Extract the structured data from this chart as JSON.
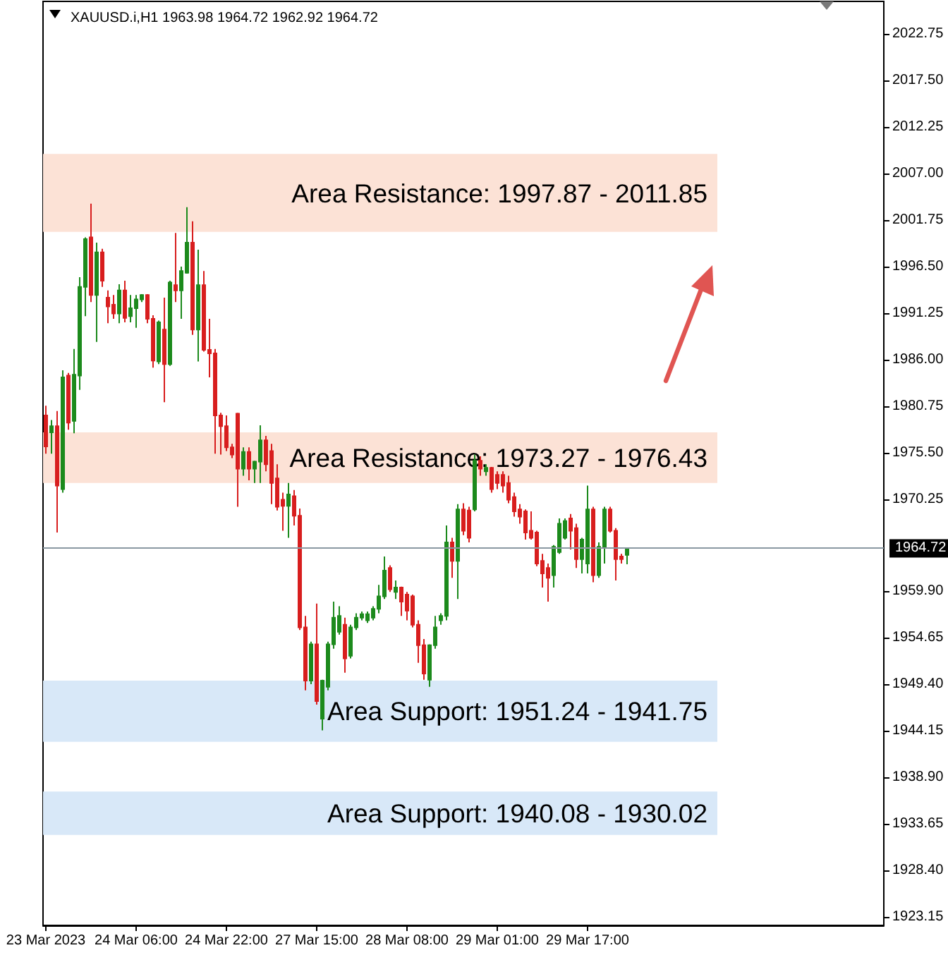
{
  "chart_data": {
    "type": "candlestick",
    "title": "XAUUSD.i,H1 1963.98 1964.72 1962.92 1964.72",
    "categories": [
      "23 Mar 2023",
      null,
      null,
      null,
      null,
      null,
      null,
      null,
      null,
      null,
      null,
      null,
      null,
      null,
      null,
      null,
      "24 Mar 06:00",
      null,
      null,
      null,
      null,
      null,
      null,
      null,
      null,
      null,
      null,
      null,
      null,
      null,
      null,
      null,
      "24 Mar 22:00",
      null,
      null,
      null,
      null,
      null,
      null,
      null,
      null,
      null,
      null,
      null,
      null,
      null,
      null,
      null,
      "27 Mar 15:00",
      null,
      null,
      null,
      null,
      null,
      null,
      null,
      null,
      null,
      null,
      null,
      null,
      null,
      null,
      null,
      "28 Mar 08:00",
      null,
      null,
      null,
      null,
      null,
      null,
      null,
      null,
      null,
      null,
      null,
      null,
      null,
      null,
      null,
      "29 Mar 01:00",
      null,
      null,
      null,
      null,
      null,
      null,
      null,
      null,
      null,
      null,
      null,
      null,
      null,
      null,
      null,
      "29 Mar 17:00",
      null,
      null,
      null,
      null,
      null,
      null,
      null,
      null,
      null,
      null,
      null,
      null,
      null,
      null,
      null,
      null,
      null,
      null,
      null,
      null,
      null,
      null,
      null,
      null,
      null,
      null,
      null,
      null,
      null,
      null,
      null,
      null,
      null,
      null,
      null,
      null,
      null,
      null,
      null,
      null,
      null,
      null,
      null,
      null,
      null,
      null,
      null,
      null,
      null,
      null,
      null,
      null
    ],
    "ohlc": [
      [
        1979.7,
        1980.8,
        1975.4,
        1976.2
      ],
      [
        1977.8,
        1979.2,
        1975.4,
        1978.5
      ],
      [
        1978.5,
        1980.2,
        1966.5,
        1971.8
      ],
      [
        1971.4,
        1984.8,
        1971.0,
        1984.0
      ],
      [
        1984.2,
        1984.5,
        1978.1,
        1978.9
      ],
      [
        1979.1,
        1987.2,
        1977.7,
        1984.3
      ],
      [
        1984.2,
        1995.3,
        1982.6,
        1994.2
      ],
      [
        1994.2,
        1999.8,
        1990.9,
        1999.6
      ],
      [
        1999.8,
        2003.6,
        1992.5,
        1993.3
      ],
      [
        1993.3,
        1999.2,
        1988.0,
        1998.1
      ],
      [
        1998.1,
        1998.5,
        1994.2,
        1994.9
      ],
      [
        1993.0,
        1993.8,
        1990.1,
        1992.0
      ],
      [
        1992.2,
        1993.3,
        1990.6,
        1991.2
      ],
      [
        1991.2,
        1994.5,
        1990.1,
        1993.8
      ],
      [
        1993.8,
        1994.9,
        1990.2,
        1990.7
      ],
      [
        1990.9,
        1993.3,
        1990.2,
        1991.8
      ],
      [
        1991.8,
        1993.3,
        1989.6,
        1992.8
      ],
      [
        1992.8,
        1993.4,
        1992.5,
        1993.3
      ],
      [
        1993.3,
        1993.4,
        1990.1,
        1990.6
      ],
      [
        1990.6,
        1991.0,
        1985.1,
        1985.9
      ],
      [
        1985.8,
        1990.4,
        1985.5,
        1990.2
      ],
      [
        1989.4,
        1993.0,
        1981.2,
        1985.5
      ],
      [
        1985.5,
        1994.9,
        1985.3,
        1994.7
      ],
      [
        1994.4,
        2000.3,
        1992.5,
        1993.8
      ],
      [
        1993.8,
        1996.5,
        1990.6,
        1996.0
      ],
      [
        1995.8,
        2003.2,
        1995.7,
        1999.2
      ],
      [
        1999.2,
        2001.6,
        1988.8,
        1989.4
      ],
      [
        1989.4,
        1998.4,
        1985.8,
        1994.4
      ],
      [
        1994.4,
        1996.0,
        1986.9,
        1987.1
      ],
      [
        1987.1,
        1990.6,
        1984.0,
        1986.7
      ],
      [
        1986.7,
        1987.2,
        1975.4,
        1979.7
      ],
      [
        1979.7,
        1980.0,
        1975.3,
        1978.5
      ],
      [
        1978.5,
        1979.7,
        1975.7,
        1976.1
      ],
      [
        1976.1,
        1976.5,
        1974.9,
        1975.3
      ],
      [
        1979.9,
        1980.0,
        1969.4,
        1973.7
      ],
      [
        1973.7,
        1976.1,
        1972.9,
        1975.6
      ],
      [
        1975.6,
        1976.1,
        1972.4,
        1973.7
      ],
      [
        1973.7,
        1974.6,
        1972.1,
        1974.5
      ],
      [
        1974.5,
        1978.6,
        1972.1,
        1976.9
      ],
      [
        1976.9,
        1977.4,
        1973.4,
        1974.2
      ],
      [
        1975.7,
        1976.5,
        1969.7,
        1972.1
      ],
      [
        1972.6,
        1974.2,
        1969.0,
        1969.4
      ],
      [
        1970.2,
        1971.0,
        1966.7,
        1969.5
      ],
      [
        1969.5,
        1972.1,
        1965.9,
        1970.8
      ],
      [
        1970.6,
        1971.3,
        1967.3,
        1968.4
      ],
      [
        1968.4,
        1969.2,
        1955.5,
        1955.8
      ],
      [
        1955.8,
        1957.1,
        1948.7,
        1949.8
      ],
      [
        1949.8,
        1954.2,
        1949.4,
        1953.9
      ],
      [
        1953.9,
        1958.5,
        1947.1,
        1947.5
      ],
      [
        1945.5,
        1949.9,
        1944.2,
        1949.8
      ],
      [
        1949.1,
        1954.2,
        1948.7,
        1953.9
      ],
      [
        1953.9,
        1958.7,
        1953.4,
        1956.9
      ],
      [
        1955.3,
        1958.2,
        1955.0,
        1957.1
      ],
      [
        1956.1,
        1956.9,
        1950.7,
        1952.3
      ],
      [
        1952.6,
        1956.1,
        1952.3,
        1955.8
      ],
      [
        1955.8,
        1957.4,
        1955.5,
        1956.9
      ],
      [
        1956.9,
        1957.6,
        1956.6,
        1957.3
      ],
      [
        1956.6,
        1957.6,
        1956.3,
        1957.3
      ],
      [
        1956.9,
        1958.2,
        1956.6,
        1957.9
      ],
      [
        1957.9,
        1960.6,
        1957.4,
        1959.3
      ],
      [
        1959.3,
        1963.8,
        1959.0,
        1962.2
      ],
      [
        1962.5,
        1962.8,
        1959.8,
        1960.1
      ],
      [
        1959.8,
        1961.1,
        1959.0,
        1960.3
      ],
      [
        1960.3,
        1960.4,
        1957.1,
        1958.7
      ],
      [
        1959.5,
        1959.8,
        1956.6,
        1957.7
      ],
      [
        1959.3,
        1959.5,
        1955.8,
        1956.1
      ],
      [
        1956.1,
        1956.6,
        1951.8,
        1953.8
      ],
      [
        1953.8,
        1954.5,
        1949.9,
        1950.6
      ],
      [
        1949.9,
        1953.9,
        1949.1,
        1953.8
      ],
      [
        1953.8,
        1957.1,
        1953.4,
        1955.8
      ],
      [
        1956.6,
        1957.4,
        1956.1,
        1957.1
      ],
      [
        1957.1,
        1967.3,
        1956.6,
        1965.4
      ],
      [
        1965.4,
        1965.9,
        1961.4,
        1963.3
      ],
      [
        1963.3,
        1969.7,
        1959.0,
        1969.1
      ],
      [
        1969.1,
        1969.8,
        1966.2,
        1966.7
      ],
      [
        1969.0,
        1969.4,
        1965.4,
        1965.9
      ],
      [
        1969.1,
        1975.3,
        1968.9,
        1974.6
      ],
      [
        1974.6,
        1975.1,
        1972.9,
        1973.7
      ],
      [
        1973.4,
        1974.2,
        1972.9,
        1973.8
      ],
      [
        1973.8,
        1973.9,
        1971.0,
        1971.4
      ],
      [
        1973.0,
        1973.4,
        1971.4,
        1972.1
      ],
      [
        1973.0,
        1973.4,
        1971.0,
        1971.8
      ],
      [
        1972.1,
        1972.9,
        1969.8,
        1970.2
      ],
      [
        1970.5,
        1971.0,
        1968.3,
        1968.9
      ],
      [
        1969.1,
        1969.7,
        1967.5,
        1968.3
      ],
      [
        1968.9,
        1969.1,
        1965.7,
        1966.5
      ],
      [
        1966.7,
        1968.9,
        1965.7,
        1965.9
      ],
      [
        1966.5,
        1966.7,
        1962.7,
        1963.0
      ],
      [
        1963.3,
        1964.1,
        1960.3,
        1961.9
      ],
      [
        1962.5,
        1963.0,
        1958.7,
        1961.4
      ],
      [
        1961.7,
        1965.1,
        1960.3,
        1964.9
      ],
      [
        1964.3,
        1968.1,
        1964.1,
        1967.5
      ],
      [
        1965.9,
        1968.1,
        1965.7,
        1967.8
      ],
      [
        1968.1,
        1968.6,
        1964.6,
        1966.7
      ],
      [
        1967.0,
        1967.5,
        1962.5,
        1963.5
      ],
      [
        1963.5,
        1965.9,
        1961.9,
        1965.7
      ],
      [
        1963.0,
        1971.8,
        1961.9,
        1969.1
      ],
      [
        1969.1,
        1969.4,
        1960.9,
        1961.7
      ],
      [
        1961.7,
        1965.4,
        1961.4,
        1964.9
      ],
      [
        1964.9,
        1969.4,
        1963.0,
        1969.1
      ],
      [
        1969.1,
        1969.4,
        1966.5,
        1966.7
      ],
      [
        1966.7,
        1967.0,
        1961.1,
        1963.5
      ],
      [
        1963.8,
        1964.1,
        1963.0,
        1963.5
      ],
      [
        1963.98,
        1964.72,
        1962.92,
        1964.72
      ],
      null,
      null,
      null,
      null,
      null,
      null,
      null,
      null,
      null,
      null,
      null,
      null,
      null,
      null,
      null,
      null,
      null,
      null,
      null,
      null,
      null,
      null,
      null,
      null,
      null,
      null,
      null,
      null,
      null,
      null,
      null,
      null,
      null,
      null,
      null,
      null,
      null,
      null,
      null,
      null,
      null,
      null,
      null,
      null,
      null
    ],
    "colors": [
      "#d81e1e",
      "#1c8a1c",
      "#d81e1e",
      "#1c8a1c",
      "#d81e1e",
      "#1c8a1c",
      "#1c8a1c",
      "#1c8a1c",
      "#d81e1e",
      "#1c8a1c",
      "#d81e1e",
      "#d81e1e",
      "#d81e1e",
      "#1c8a1c",
      "#d81e1e",
      "#1c8a1c",
      "#1c8a1c",
      "#1c8a1c",
      "#d81e1e",
      "#d81e1e",
      "#1c8a1c",
      "#d81e1e",
      "#1c8a1c",
      "#d81e1e",
      "#1c8a1c",
      "#1c8a1c",
      "#d81e1e",
      "#1c8a1c",
      "#d81e1e",
      "#d81e1e",
      "#d81e1e",
      "#d81e1e",
      "#d81e1e",
      "#d81e1e",
      "#d81e1e",
      "#1c8a1c",
      "#d81e1e",
      "#1c8a1c",
      "#1c8a1c",
      "#d81e1e",
      "#d81e1e",
      "#d81e1e",
      "#d81e1e",
      "#1c8a1c",
      "#d81e1e",
      "#d81e1e",
      "#d81e1e",
      "#1c8a1c",
      "#d81e1e",
      "#1c8a1c",
      "#1c8a1c",
      "#1c8a1c",
      "#1c8a1c",
      "#d81e1e",
      "#1c8a1c",
      "#1c8a1c",
      "#1c8a1c",
      "#1c8a1c",
      "#1c8a1c",
      "#1c8a1c",
      "#1c8a1c",
      "#d81e1e",
      "#1c8a1c",
      "#d81e1e",
      "#d81e1e",
      "#d81e1e",
      "#d81e1e",
      "#d81e1e",
      "#1c8a1c",
      "#1c8a1c",
      "#1c8a1c",
      "#1c8a1c",
      "#d81e1e",
      "#1c8a1c",
      "#d81e1e",
      "#d81e1e",
      "#1c8a1c",
      "#d81e1e",
      "#1c8a1c",
      "#d81e1e",
      "#d81e1e",
      "#d81e1e",
      "#d81e1e",
      "#d81e1e",
      "#d81e1e",
      "#d81e1e",
      "#d81e1e",
      "#d81e1e",
      "#d81e1e",
      "#d81e1e",
      "#1c8a1c",
      "#1c8a1c",
      "#1c8a1c",
      "#d81e1e",
      "#d81e1e",
      "#1c8a1c",
      "#1c8a1c",
      "#d81e1e",
      "#1c8a1c",
      "#1c8a1c",
      "#d81e1e",
      "#d81e1e",
      "#d81e1e",
      "#1c8a1c",
      null,
      null,
      null,
      null,
      null,
      null,
      null,
      null,
      null,
      null,
      null,
      null,
      null,
      null,
      null,
      null,
      null,
      null,
      null,
      null,
      null,
      null,
      null,
      null,
      null,
      null,
      null,
      null,
      null,
      null,
      null,
      null,
      null,
      null,
      null,
      null,
      null,
      null,
      null,
      null,
      null,
      null,
      null,
      null,
      null
    ],
    "ylim": [
      1922.2,
      2026.4
    ],
    "yticks": [
      2022.75,
      {
        "value": 2017.5,
        "label": "2017.50"
      },
      2012.25,
      {
        "value": 2007,
        "label": "2007.00"
      },
      2001.75,
      {
        "value": 1996.5,
        "label": "1996.50"
      },
      1991.25,
      {
        "value": 1986,
        "label": "1986.00"
      },
      1980.75,
      {
        "value": 1975.5,
        "label": "1975.50"
      },
      1970.25,
      {
        "value": 1959.9,
        "label": "1959.90"
      },
      1954.65,
      {
        "value": 1949.4,
        "label": "1949.40"
      },
      1944.15,
      {
        "value": 1938.9,
        "label": "1938.90"
      },
      1933.65,
      {
        "value": 1928.4,
        "label": "1928.40"
      },
      1923.15
    ],
    "bands": [
      {
        "axis": "y",
        "from": 2000.4,
        "to": 2009.2,
        "label": "Area Resistance: 1997.87 - 2011.85",
        "color": "#fce2d6"
      },
      {
        "axis": "y",
        "from": 1972.1,
        "to": 1977.8,
        "label": "Area Resistance: 1973.27 - 1976.43",
        "color": "#fce2d6"
      },
      {
        "axis": "y",
        "from": 1942.9,
        "to": 1949.8,
        "label": "Area Support: 1951.24 - 1941.75",
        "color": "#d8e8f8"
      },
      {
        "axis": "y",
        "from": 1932.4,
        "to": 1937.3,
        "label": "Area Support: 1940.08 - 1930.02",
        "color": "#d8e8f8"
      }
    ],
    "ref_lines": [
      {
        "axis": "y",
        "value": 1964.72,
        "label": "1964.72",
        "color": "#8a98a2"
      }
    ]
  }
}
